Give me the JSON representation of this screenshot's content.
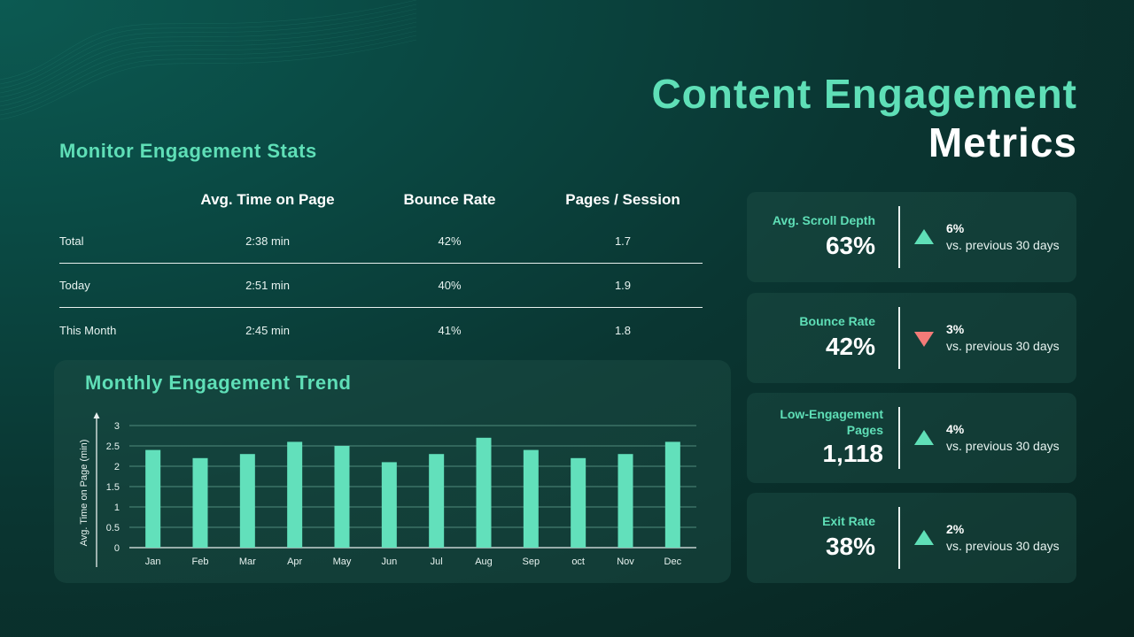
{
  "header": {
    "title_line1": "Content Engagement",
    "title_line2": "Metrics"
  },
  "stats": {
    "section_title": "Monitor Engagement Stats",
    "columns": [
      "",
      "Avg. Time on Page",
      "Bounce Rate",
      "Pages / Session"
    ],
    "rows": [
      {
        "label": "Total",
        "time": "2:38 min",
        "bounce": "42%",
        "pages": "1.7"
      },
      {
        "label": "Today",
        "time": "2:51 min",
        "bounce": "40%",
        "pages": "1.9"
      },
      {
        "label": "This Month",
        "time": "2:45 min",
        "bounce": "41%",
        "pages": "1.8"
      }
    ]
  },
  "chart": {
    "title": "Monthly Engagement Trend"
  },
  "chart_data": {
    "type": "bar",
    "title": "Monthly Engagement Trend",
    "xlabel": "",
    "ylabel": "Avg. Time on Page (min)",
    "categories": [
      "Jan",
      "Feb",
      "Mar",
      "Apr",
      "May",
      "Jun",
      "Jul",
      "Aug",
      "Sep",
      "oct",
      "Nov",
      "Dec"
    ],
    "values": [
      2.4,
      2.2,
      2.3,
      2.6,
      2.5,
      2.1,
      2.3,
      2.7,
      2.4,
      2.2,
      2.3,
      2.6
    ],
    "ylim": [
      0,
      3
    ],
    "yticks": [
      "0",
      "0.5",
      "1",
      "1.5",
      "2",
      "2.5",
      "3"
    ],
    "grid": true,
    "legend": "none",
    "bar_color": "#62e0bb"
  },
  "kpis": [
    {
      "label": "Avg. Scroll Depth",
      "value": "63%",
      "direction": "up",
      "change": "6%",
      "compare": "vs. previous 30 days"
    },
    {
      "label": "Bounce Rate",
      "value": "42%",
      "direction": "down",
      "change": "3%",
      "compare": "vs. previous 30 days"
    },
    {
      "label": "Low-Engagement Pages",
      "value": "1,118",
      "direction": "up",
      "change": "4%",
      "compare": "vs. previous 30 days"
    },
    {
      "label": "Exit Rate",
      "value": "38%",
      "direction": "up",
      "change": "2%",
      "compare": "vs. previous 30 days"
    }
  ],
  "colors": {
    "accent": "#5fdfb7",
    "negative": "#f47b78",
    "card": "#1e5046"
  }
}
